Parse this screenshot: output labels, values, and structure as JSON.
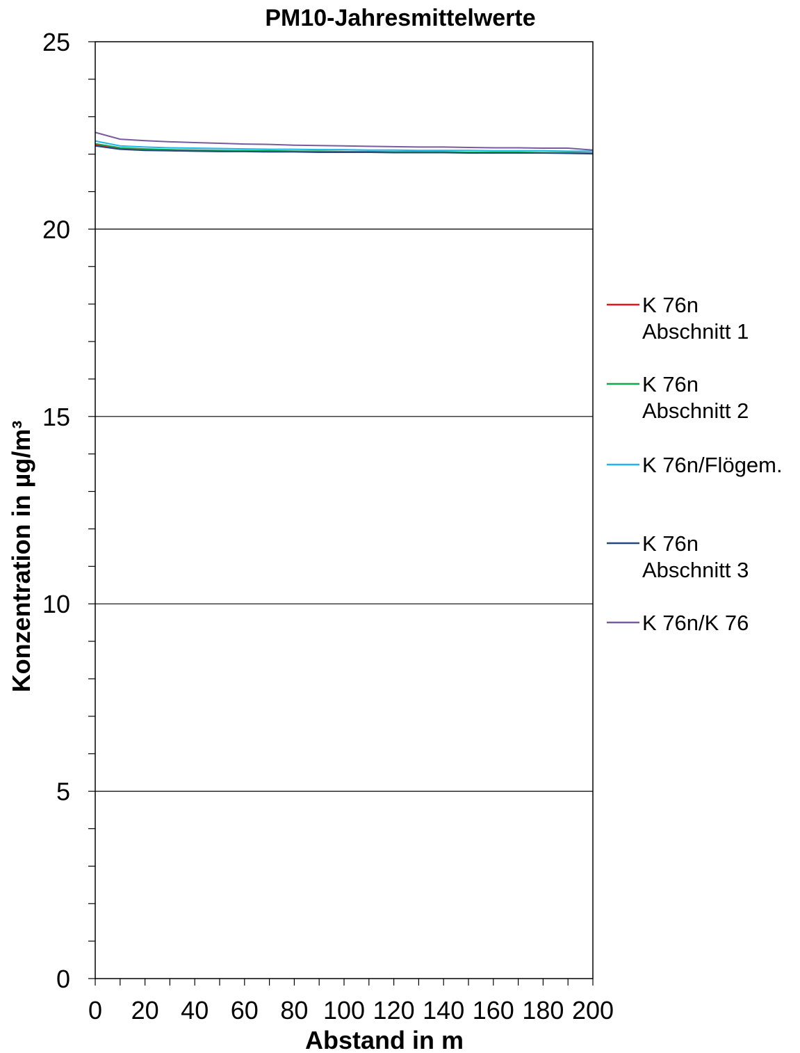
{
  "chart_data": {
    "type": "line",
    "title": "PM10-Jahresmittelwerte",
    "xlabel": "Abstand in m",
    "ylabel": "Konzentration in µg/m³",
    "xlim": [
      0,
      200
    ],
    "ylim": [
      0,
      25
    ],
    "x_ticks": [
      "0",
      "20",
      "40",
      "60",
      "80",
      "100",
      "120",
      "140",
      "160",
      "180",
      "200"
    ],
    "y_ticks": [
      "0",
      "5",
      "10",
      "15",
      "20",
      "25"
    ],
    "grid": "horizontal major lines",
    "legend_position": "right",
    "x": [
      0,
      10,
      20,
      30,
      40,
      50,
      60,
      70,
      80,
      90,
      100,
      110,
      120,
      130,
      140,
      150,
      160,
      170,
      180,
      190,
      200
    ],
    "series": [
      {
        "name_lines": [
          "K 76n",
          "Abschnitt 1"
        ],
        "color": "#e8141b",
        "values": [
          22.25,
          22.15,
          22.12,
          22.11,
          22.1,
          22.09,
          22.09,
          22.08,
          22.08,
          22.07,
          22.07,
          22.06,
          22.06,
          22.06,
          22.05,
          22.05,
          22.05,
          22.04,
          22.04,
          22.04,
          22.03
        ]
      },
      {
        "name_lines": [
          "K 76n",
          "Abschnitt 2"
        ],
        "color": "#12a64a",
        "values": [
          22.28,
          22.17,
          22.14,
          22.12,
          22.11,
          22.1,
          22.09,
          22.09,
          22.08,
          22.08,
          22.07,
          22.07,
          22.06,
          22.06,
          22.06,
          22.05,
          22.05,
          22.05,
          22.04,
          22.04,
          22.03
        ]
      },
      {
        "name_lines": [
          "K 76n/Flögem."
        ],
        "color": "#1fb5e8",
        "values": [
          22.35,
          22.22,
          22.19,
          22.17,
          22.16,
          22.15,
          22.14,
          22.13,
          22.13,
          22.12,
          22.12,
          22.11,
          22.11,
          22.1,
          22.1,
          22.1,
          22.09,
          22.09,
          22.09,
          22.08,
          22.08
        ]
      },
      {
        "name_lines": [
          "K 76n",
          "Abschnitt 3"
        ],
        "color": "#27487f",
        "values": [
          22.22,
          22.13,
          22.1,
          22.09,
          22.08,
          22.07,
          22.07,
          22.06,
          22.06,
          22.05,
          22.05,
          22.05,
          22.04,
          22.04,
          22.04,
          22.03,
          22.03,
          22.03,
          22.03,
          22.02,
          22.01
        ]
      },
      {
        "name_lines": [
          "K 76n/K 76"
        ],
        "color": "#7a5a9e",
        "values": [
          22.58,
          22.4,
          22.36,
          22.33,
          22.31,
          22.29,
          22.27,
          22.26,
          22.24,
          22.23,
          22.22,
          22.21,
          22.2,
          22.19,
          22.19,
          22.18,
          22.17,
          22.17,
          22.16,
          22.16,
          22.11
        ]
      }
    ]
  }
}
